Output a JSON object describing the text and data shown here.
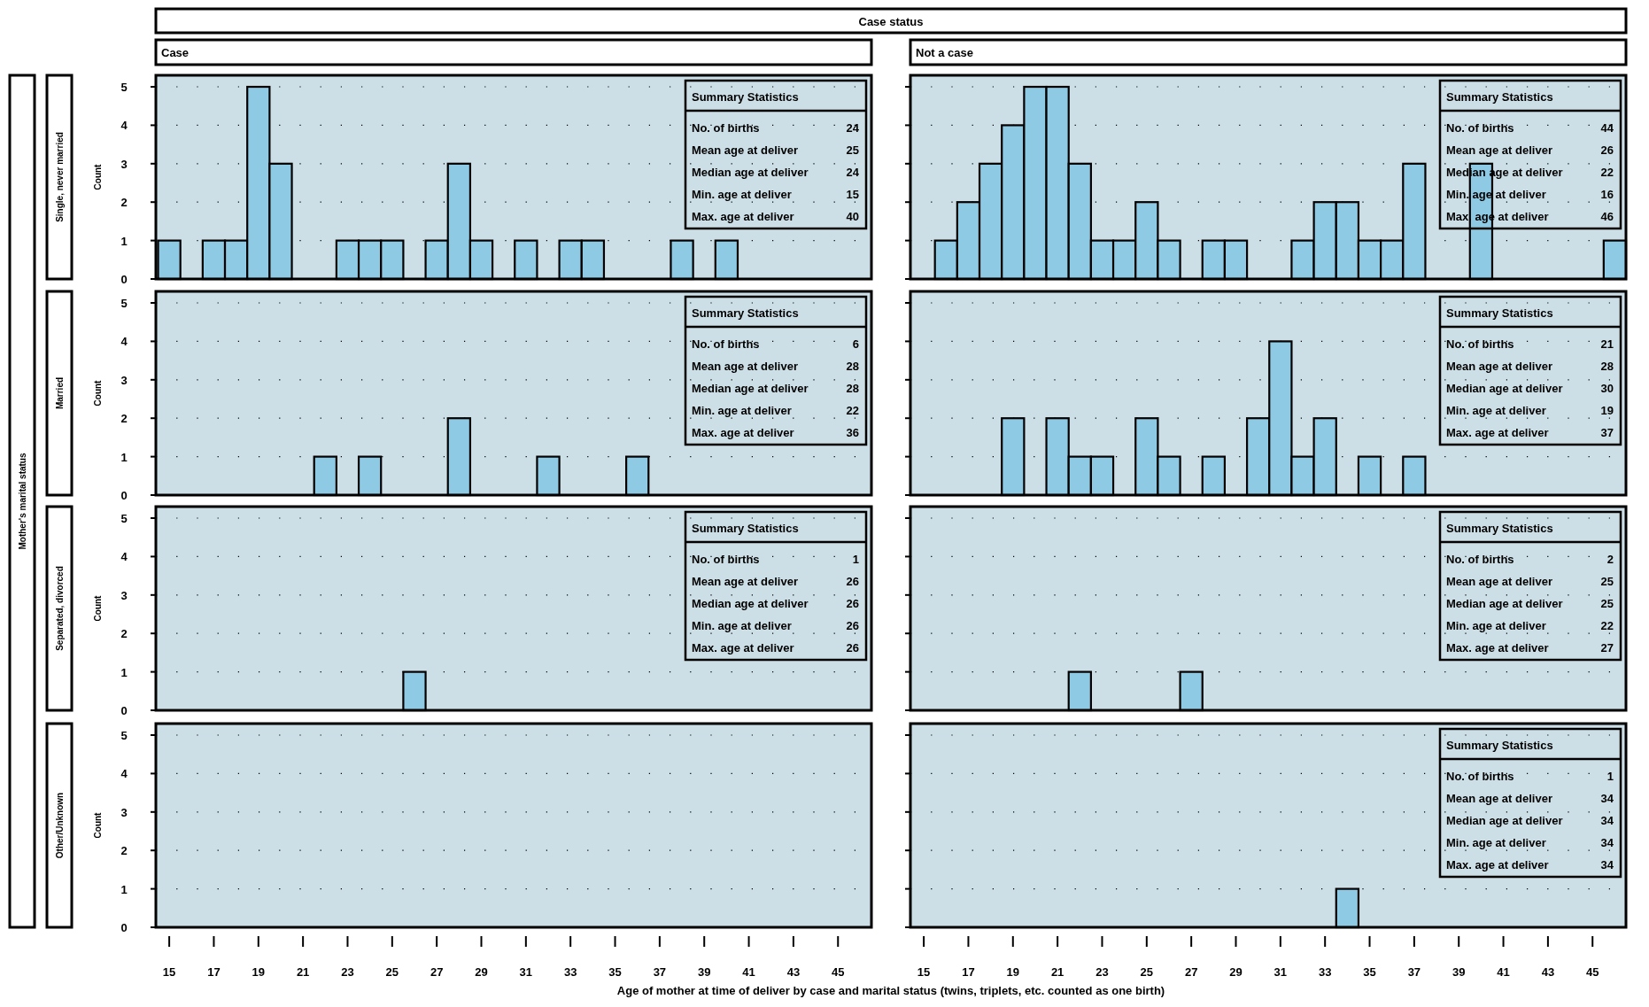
{
  "chart_data": [
    {
      "type": "histogram",
      "subtitle": "Case",
      "ylabel": "Count",
      "y2label": "Single, never married",
      "bins": [
        14.5,
        15.5,
        16.5,
        17.5,
        18.5,
        19.5,
        20.5,
        21.5,
        22.5,
        23.5,
        24.5,
        25.5,
        26.5,
        27.5,
        28.5,
        29.5,
        30.5,
        31.5,
        32.5,
        33.5,
        34.5,
        35.5,
        36.5,
        37.5,
        38.5,
        39.5,
        40.5,
        41.5,
        42.5,
        43.5,
        44.5,
        45.5,
        46.5
      ],
      "values": [
        1,
        0,
        1,
        1,
        5,
        3,
        0,
        0,
        1,
        1,
        1,
        0,
        1,
        3,
        1,
        0,
        1,
        0,
        1,
        1,
        0,
        0,
        0,
        1,
        0,
        1,
        0,
        0,
        0,
        0,
        0,
        0
      ],
      "color": "#8fcae4",
      "xlim": [
        14.4,
        46.5
      ],
      "ylim": [
        0,
        5.3
      ],
      "yticks": [
        0,
        1,
        2,
        3,
        4,
        5
      ],
      "grid": "y",
      "tick_labels": "y",
      "annotations": [
        "Summary Statistics",
        "No. of births",
        "24",
        "Mean age at deliver",
        "25",
        "Median age at deliver",
        "24",
        "Min. age at deliver",
        "15",
        "Max. age at deliver",
        "40"
      ]
    },
    {
      "type": "histogram",
      "subtitle": "Not a case",
      "bins": [
        14.5,
        15.5,
        16.5,
        17.5,
        18.5,
        19.5,
        20.5,
        21.5,
        22.5,
        23.5,
        24.5,
        25.5,
        26.5,
        27.5,
        28.5,
        29.5,
        30.5,
        31.5,
        32.5,
        33.5,
        34.5,
        35.5,
        36.5,
        37.5,
        38.5,
        39.5,
        40.5,
        41.5,
        42.5,
        43.5,
        44.5,
        45.5,
        46.5
      ],
      "values": [
        0,
        1,
        2,
        3,
        4,
        5,
        5,
        3,
        1,
        1,
        2,
        1,
        0,
        1,
        1,
        0,
        0,
        1,
        2,
        2,
        1,
        1,
        3,
        0,
        0,
        3,
        0,
        0,
        0,
        0,
        0,
        1
      ],
      "color": "#8fcae4",
      "xlim": [
        14.4,
        46.5
      ],
      "ylim": [
        0,
        5.3
      ],
      "yticks": [
        0,
        1,
        2,
        3,
        4,
        5
      ],
      "grid": "y",
      "tick_labels": false,
      "annotations": [
        "Summary Statistics",
        "No. of births",
        "44",
        "Mean age at deliver",
        "26",
        "Median age at deliver",
        "22",
        "Min. age at deliver",
        "16",
        "Max. age at deliver",
        "46"
      ]
    },
    {
      "type": "histogram",
      "ylabel": "Count",
      "y2label": "Married",
      "bins": [
        14.5,
        15.5,
        16.5,
        17.5,
        18.5,
        19.5,
        20.5,
        21.5,
        22.5,
        23.5,
        24.5,
        25.5,
        26.5,
        27.5,
        28.5,
        29.5,
        30.5,
        31.5,
        32.5,
        33.5,
        34.5,
        35.5,
        36.5,
        37.5,
        38.5,
        39.5,
        40.5,
        41.5,
        42.5,
        43.5,
        44.5,
        45.5,
        46.5
      ],
      "values": [
        0,
        0,
        0,
        0,
        0,
        0,
        0,
        1,
        0,
        1,
        0,
        0,
        0,
        2,
        0,
        0,
        0,
        1,
        0,
        0,
        0,
        1,
        0,
        0,
        0,
        0,
        0,
        0,
        0,
        0,
        0,
        0
      ],
      "color": "#8fcae4",
      "xlim": [
        14.4,
        46.5
      ],
      "ylim": [
        0,
        5.3
      ],
      "yticks": [
        0,
        1,
        2,
        3,
        4,
        5
      ],
      "grid": "y",
      "tick_labels": "y",
      "annotations": [
        "Summary Statistics",
        "No. of births",
        "6",
        "Mean age at deliver",
        "28",
        "Median age at deliver",
        "28",
        "Min. age at deliver",
        "22",
        "Max. age at deliver",
        "36"
      ]
    },
    {
      "type": "histogram",
      "bins": [
        14.5,
        15.5,
        16.5,
        17.5,
        18.5,
        19.5,
        20.5,
        21.5,
        22.5,
        23.5,
        24.5,
        25.5,
        26.5,
        27.5,
        28.5,
        29.5,
        30.5,
        31.5,
        32.5,
        33.5,
        34.5,
        35.5,
        36.5,
        37.5,
        38.5,
        39.5,
        40.5,
        41.5,
        42.5,
        43.5,
        44.5,
        45.5,
        46.5
      ],
      "values": [
        0,
        0,
        0,
        0,
        2,
        0,
        2,
        1,
        1,
        0,
        2,
        1,
        0,
        1,
        0,
        2,
        4,
        1,
        2,
        0,
        1,
        0,
        1,
        0,
        0,
        0,
        0,
        0,
        0,
        0,
        0,
        0
      ],
      "color": "#8fcae4",
      "xlim": [
        14.4,
        46.5
      ],
      "ylim": [
        0,
        5.3
      ],
      "yticks": [
        0,
        1,
        2,
        3,
        4,
        5
      ],
      "grid": "y",
      "tick_labels": false,
      "annotations": [
        "Summary Statistics",
        "No. of births",
        "21",
        "Mean age at deliver",
        "28",
        "Median age at deliver",
        "30",
        "Min. age at deliver",
        "19",
        "Max. age at deliver",
        "37"
      ]
    },
    {
      "type": "histogram",
      "ylabel": "Count",
      "y2label": "Separated, divorced",
      "bins": [
        14.5,
        15.5,
        16.5,
        17.5,
        18.5,
        19.5,
        20.5,
        21.5,
        22.5,
        23.5,
        24.5,
        25.5,
        26.5,
        27.5,
        28.5,
        29.5,
        30.5,
        31.5,
        32.5,
        33.5,
        34.5,
        35.5,
        36.5,
        37.5,
        38.5,
        39.5,
        40.5,
        41.5,
        42.5,
        43.5,
        44.5,
        45.5,
        46.5
      ],
      "values": [
        0,
        0,
        0,
        0,
        0,
        0,
        0,
        0,
        0,
        0,
        0,
        1,
        0,
        0,
        0,
        0,
        0,
        0,
        0,
        0,
        0,
        0,
        0,
        0,
        0,
        0,
        0,
        0,
        0,
        0,
        0,
        0
      ],
      "color": "#8fcae4",
      "xlim": [
        14.4,
        46.5
      ],
      "ylim": [
        0,
        5.3
      ],
      "yticks": [
        0,
        1,
        2,
        3,
        4,
        5
      ],
      "grid": "y",
      "tick_labels": "y",
      "annotations": [
        "Summary Statistics",
        "No. of births",
        "1",
        "Mean age at deliver",
        "26",
        "Median age at deliver",
        "26",
        "Min. age at deliver",
        "26",
        "Max. age at deliver",
        "26"
      ]
    },
    {
      "type": "histogram",
      "bins": [
        14.5,
        15.5,
        16.5,
        17.5,
        18.5,
        19.5,
        20.5,
        21.5,
        22.5,
        23.5,
        24.5,
        25.5,
        26.5,
        27.5,
        28.5,
        29.5,
        30.5,
        31.5,
        32.5,
        33.5,
        34.5,
        35.5,
        36.5,
        37.5,
        38.5,
        39.5,
        40.5,
        41.5,
        42.5,
        43.5,
        44.5,
        45.5,
        46.5
      ],
      "values": [
        0,
        0,
        0,
        0,
        0,
        0,
        0,
        1,
        0,
        0,
        0,
        0,
        1,
        0,
        0,
        0,
        0,
        0,
        0,
        0,
        0,
        0,
        0,
        0,
        0,
        0,
        0,
        0,
        0,
        0,
        0,
        0
      ],
      "color": "#8fcae4",
      "xlim": [
        14.4,
        46.5
      ],
      "ylim": [
        0,
        5.3
      ],
      "yticks": [
        0,
        1,
        2,
        3,
        4,
        5
      ],
      "grid": "y",
      "tick_labels": false,
      "annotations": [
        "Summary Statistics",
        "No. of births",
        "2",
        "Mean age at deliver",
        "25",
        "Median age at deliver",
        "25",
        "Min. age at deliver",
        "22",
        "Max. age at deliver",
        "27"
      ]
    },
    {
      "type": "histogram",
      "ylabel": "Count",
      "y2label": "Other/Unknown",
      "xlim": [
        14.4,
        46.5
      ],
      "xticks": [
        15,
        17,
        19,
        21,
        23,
        25,
        27,
        29,
        31,
        33,
        35,
        37,
        39,
        41,
        43,
        45
      ],
      "ylim": [
        0,
        5.3
      ],
      "yticks": [
        0,
        1,
        2,
        3,
        4,
        5
      ],
      "grid": "y"
    },
    {
      "type": "histogram",
      "bins": [
        14.5,
        15.5,
        16.5,
        17.5,
        18.5,
        19.5,
        20.5,
        21.5,
        22.5,
        23.5,
        24.5,
        25.5,
        26.5,
        27.5,
        28.5,
        29.5,
        30.5,
        31.5,
        32.5,
        33.5,
        34.5,
        35.5,
        36.5,
        37.5,
        38.5,
        39.5,
        40.5,
        41.5,
        42.5,
        43.5,
        44.5,
        45.5,
        46.5
      ],
      "values": [
        0,
        0,
        0,
        0,
        0,
        0,
        0,
        0,
        0,
        0,
        0,
        0,
        0,
        0,
        0,
        0,
        0,
        0,
        0,
        1,
        0,
        0,
        0,
        0,
        0,
        0,
        0,
        0,
        0,
        0,
        0,
        0
      ],
      "color": "#8fcae4",
      "xlim": [
        14.4,
        46.5
      ],
      "xticks": [
        15,
        17,
        19,
        21,
        23,
        25,
        27,
        29,
        31,
        33,
        35,
        37,
        39,
        41,
        43,
        45
      ],
      "ylim": [
        0,
        5.3
      ],
      "yticks": [
        0,
        1,
        2,
        3,
        4,
        5
      ],
      "grid": "y",
      "tick_labels": "x",
      "annotations": [
        "Summary Statistics",
        "No. of births",
        "1",
        "Mean age at deliver",
        "34",
        "Median age at deliver",
        "34",
        "Min. age at deliver",
        "34",
        "Max. age at deliver",
        "34"
      ]
    },
    {
      "type": "other",
      "title": "Case status",
      "xlabel": "Age of mother at time of deliver by case and marital status (twins, triplets, etc. counted as one birth)",
      "ylabel": "Mother's marital status"
    }
  ]
}
